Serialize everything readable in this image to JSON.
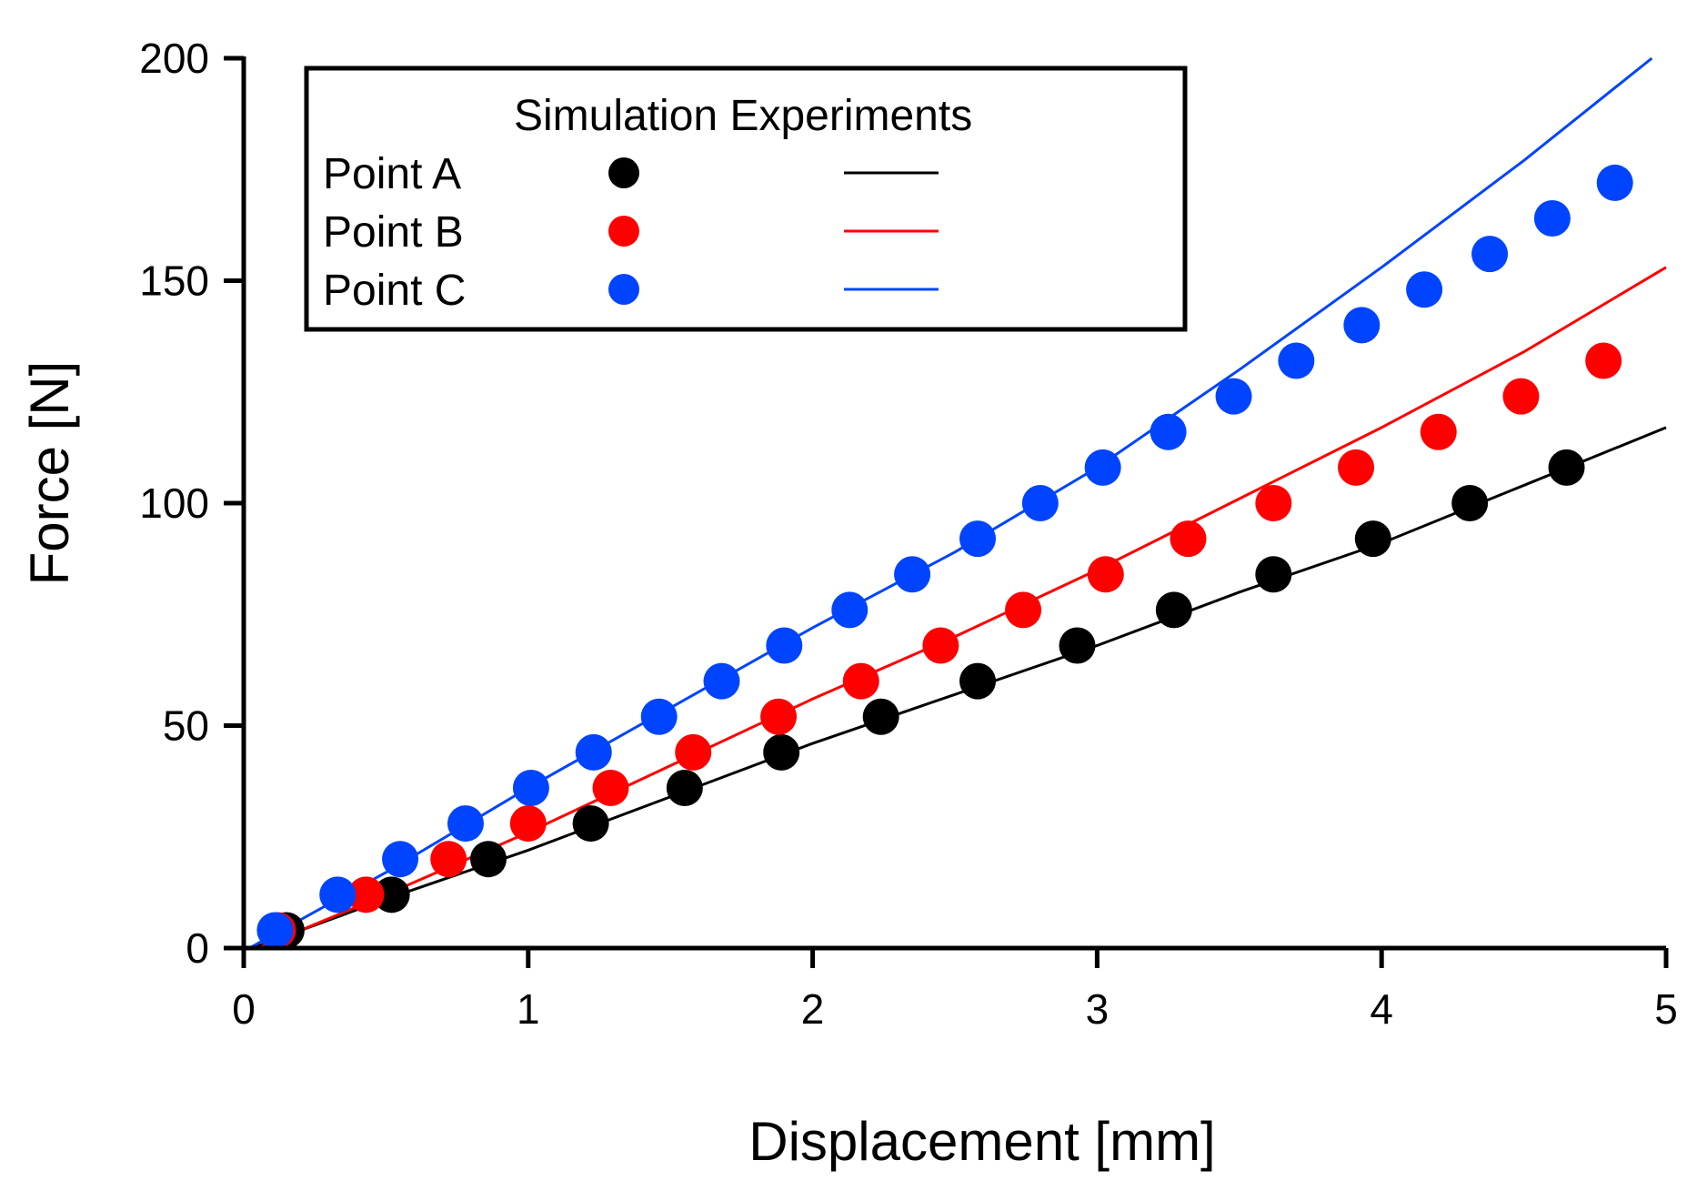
{
  "chart_data": {
    "type": "line",
    "title": "",
    "xlabel": "Displacement [mm]",
    "ylabel": "Force [N]",
    "xlim": [
      0,
      5
    ],
    "ylim": [
      0,
      200
    ],
    "xticks": [
      "0",
      "1",
      "2",
      "3",
      "4",
      "5"
    ],
    "yticks": [
      "0",
      "50",
      "100",
      "150",
      "200"
    ],
    "xtick_values": [
      0,
      1,
      2,
      3,
      4,
      5
    ],
    "ytick_values": [
      0,
      50,
      100,
      150,
      200
    ],
    "grid": false,
    "legend": {
      "placement": "top-left",
      "header": "Simulation Experiments",
      "entries": [
        "Point A",
        "Point B",
        "Point C"
      ]
    },
    "series": [
      {
        "name": "Point A",
        "color": "#000000",
        "simulation_x": [
          0.15,
          0.52,
          0.86,
          1.22,
          1.55,
          1.89,
          2.24,
          2.58,
          2.93,
          3.27,
          3.62,
          3.97,
          4.31,
          4.65
        ],
        "simulation_y": [
          4,
          12,
          20,
          28,
          36,
          44,
          52,
          60,
          68,
          76,
          84,
          92,
          100,
          108
        ],
        "experiment_x": [
          0.03,
          0.5,
          1.0,
          1.5,
          2.0,
          2.5,
          3.0,
          3.5,
          4.0,
          4.5,
          5.0
        ],
        "experiment_y": [
          0,
          11,
          22,
          34,
          46,
          57,
          68,
          80,
          91,
          104,
          117
        ]
      },
      {
        "name": "Point B",
        "color": "#ff0000",
        "simulation_x": [
          0.12,
          0.43,
          0.72,
          1.0,
          1.29,
          1.58,
          1.88,
          2.17,
          2.45,
          2.74,
          3.03,
          3.32,
          3.62,
          3.91,
          4.2,
          4.49,
          4.78
        ],
        "simulation_y": [
          4,
          12,
          20,
          28,
          36,
          44,
          52,
          60,
          68,
          76,
          84,
          92,
          100,
          108,
          116,
          124,
          132
        ],
        "experiment_x": [
          0.05,
          0.5,
          1.0,
          1.5,
          2.0,
          2.5,
          3.0,
          3.5,
          4.0,
          4.5,
          5.0
        ],
        "experiment_y": [
          0,
          12,
          26,
          41,
          56,
          70,
          85,
          101,
          117,
          134,
          153
        ]
      },
      {
        "name": "Point C",
        "color": "#0044ff",
        "simulation_x": [
          0.11,
          0.33,
          0.55,
          0.78,
          1.01,
          1.23,
          1.46,
          1.68,
          1.9,
          2.13,
          2.35,
          2.58,
          2.8,
          3.02,
          3.25,
          3.48,
          3.7,
          3.93,
          4.15,
          4.38,
          4.6,
          4.82
        ],
        "simulation_y": [
          4,
          12,
          20,
          28,
          36,
          44,
          52,
          60,
          68,
          76,
          84,
          92,
          100,
          108,
          116,
          124,
          132,
          140,
          148,
          156,
          164,
          172
        ],
        "experiment_x": [
          0.02,
          0.5,
          1.0,
          1.5,
          2.0,
          2.5,
          3.0,
          3.5,
          4.0,
          4.5,
          4.95
        ],
        "experiment_y": [
          0,
          17,
          36,
          54,
          72,
          89,
          108,
          130,
          153,
          177,
          200
        ]
      }
    ]
  }
}
